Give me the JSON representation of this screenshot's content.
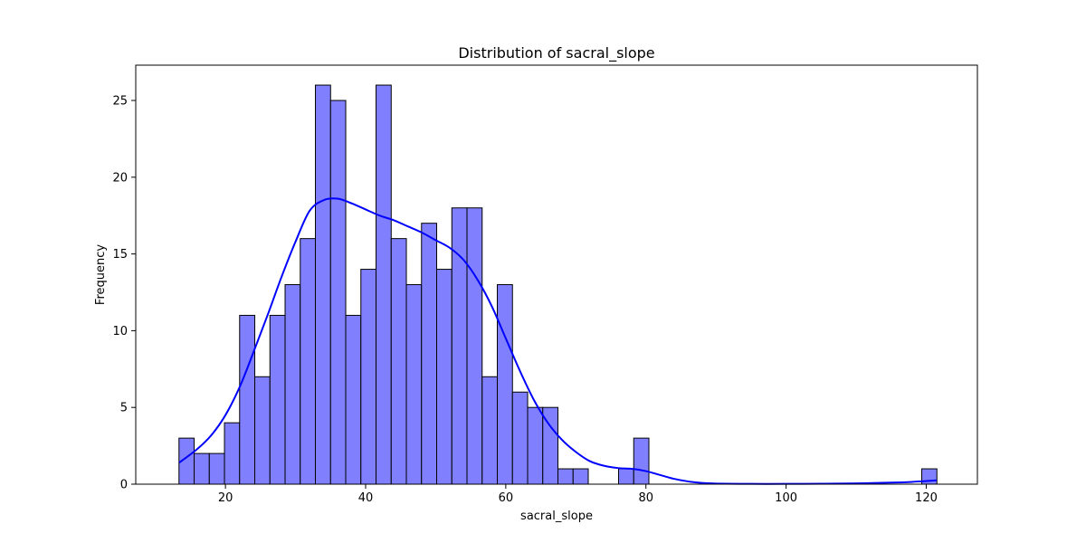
{
  "chart_data": {
    "type": "bar",
    "subtype": "histogram",
    "title": "Distribution of sacral_slope",
    "xlabel": "sacral_slope",
    "ylabel": "Frequency",
    "xlim": [
      7.2,
      127.3
    ],
    "ylim": [
      0,
      27.3
    ],
    "xticks": [
      20,
      40,
      60,
      80,
      100,
      120
    ],
    "yticks": [
      0,
      5,
      10,
      15,
      20,
      25
    ],
    "grid": false,
    "bin_start": 13.37,
    "bin_width": 2.163,
    "bin_counts": [
      3,
      2,
      2,
      4,
      11,
      7,
      11,
      13,
      16,
      26,
      25,
      11,
      14,
      26,
      16,
      13,
      17,
      14,
      18,
      18,
      7,
      13,
      6,
      5,
      5,
      1,
      1,
      0,
      0,
      1,
      3,
      0,
      0,
      0,
      0,
      0,
      0,
      0,
      0,
      0,
      0,
      0,
      0,
      0,
      0,
      0,
      0,
      0,
      0,
      1
    ],
    "kde": {
      "x": [
        13.4,
        16,
        18,
        20,
        22,
        24,
        26,
        28,
        30,
        32,
        34,
        36,
        38,
        40,
        42,
        44,
        46,
        48,
        50,
        52,
        54,
        56,
        58,
        60,
        62,
        64,
        66,
        68,
        70,
        72,
        74,
        76,
        78,
        80,
        82,
        84,
        86,
        88,
        90,
        95,
        100,
        105,
        110,
        115,
        118,
        121.5
      ],
      "y": [
        1.4,
        2.3,
        3.2,
        4.5,
        6.3,
        8.6,
        11.0,
        13.5,
        15.8,
        17.8,
        18.5,
        18.6,
        18.3,
        17.9,
        17.5,
        17.2,
        16.8,
        16.4,
        15.9,
        15.4,
        14.6,
        13.3,
        11.6,
        9.5,
        7.4,
        5.5,
        4.0,
        2.9,
        2.1,
        1.5,
        1.2,
        1.05,
        1.0,
        0.85,
        0.6,
        0.35,
        0.18,
        0.08,
        0.04,
        0.02,
        0.02,
        0.03,
        0.05,
        0.1,
        0.15,
        0.25
      ]
    },
    "colors": {
      "bar_fill": "#8080ff",
      "bar_edge": "#000000",
      "kde_line": "#0000ff"
    }
  }
}
